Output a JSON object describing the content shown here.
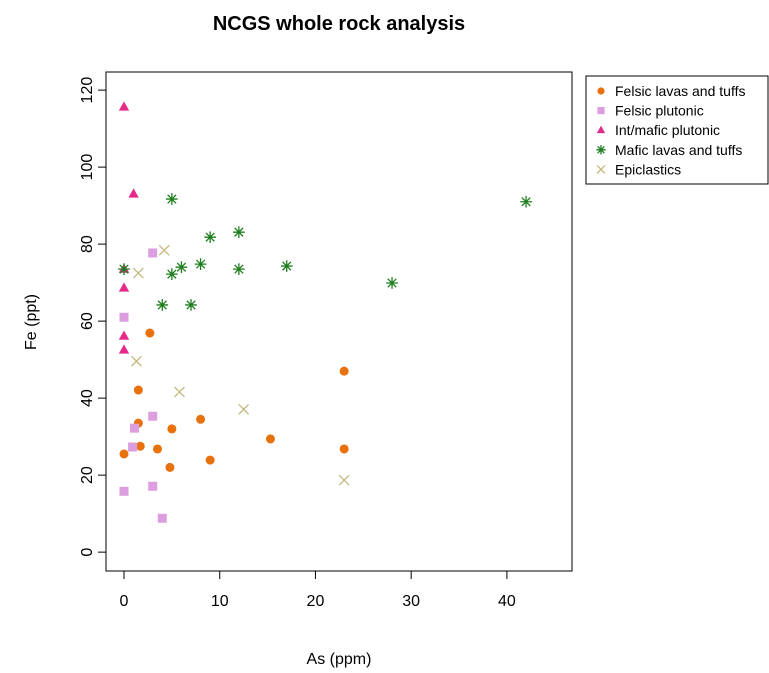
{
  "chart_data": {
    "type": "scatter",
    "title": "NCGS whole rock analysis",
    "x_label": "As (ppm)",
    "y_label": "Fe (ppt)",
    "xlim": [
      -1.88,
      46.8
    ],
    "ylim": [
      -4.9,
      124.7
    ],
    "xticks": [
      0,
      10,
      20,
      30,
      40
    ],
    "yticks": [
      0,
      20,
      40,
      60,
      80,
      100,
      120
    ],
    "legend_position": "right",
    "series": [
      {
        "name": "Felsic lavas and tuffs",
        "color": "#e8700d",
        "marker": "circle",
        "x": [
          2.7,
          1.5,
          1.5,
          1.7,
          0,
          3.5,
          5,
          4.8,
          8,
          9,
          15.3,
          23,
          23
        ],
        "values": [
          56.9,
          42.1,
          33.5,
          27.5,
          25.5,
          26.8,
          32,
          22,
          34.5,
          23.9,
          29.4,
          47,
          26.8
        ]
      },
      {
        "name": "Felsic plutonic",
        "color": "#dd9ee0",
        "marker": "square",
        "x": [
          3,
          0,
          1.1,
          3,
          0.9,
          0,
          3,
          4
        ],
        "values": [
          77.7,
          61,
          32.2,
          35.3,
          27.3,
          15.8,
          17.1,
          8.8
        ]
      },
      {
        "name": "Int/mafic plutonic",
        "color": "#e7298a",
        "marker": "triangle",
        "x": [
          0,
          1,
          0,
          0,
          0,
          0
        ],
        "values": [
          115.6,
          93,
          73.5,
          68.6,
          56.1,
          52.5
        ]
      },
      {
        "name": "Mafic lavas and tuffs",
        "color": "#1e7e1e",
        "marker": "asterisk",
        "x": [
          5,
          42,
          12,
          9,
          6,
          5,
          8,
          12,
          17,
          28,
          4,
          7,
          0
        ],
        "values": [
          91.7,
          91,
          83.1,
          81.8,
          74,
          72.2,
          74.8,
          73.5,
          74.3,
          69.9,
          64.2,
          64.2,
          73.5
        ]
      },
      {
        "name": "Epiclastics",
        "color": "#c4b87e",
        "marker": "x",
        "x": [
          4.2,
          1.5,
          1.3,
          5.8,
          12.5,
          23
        ],
        "values": [
          78.4,
          72.5,
          49.6,
          41.6,
          37.1,
          18.7
        ]
      }
    ]
  }
}
